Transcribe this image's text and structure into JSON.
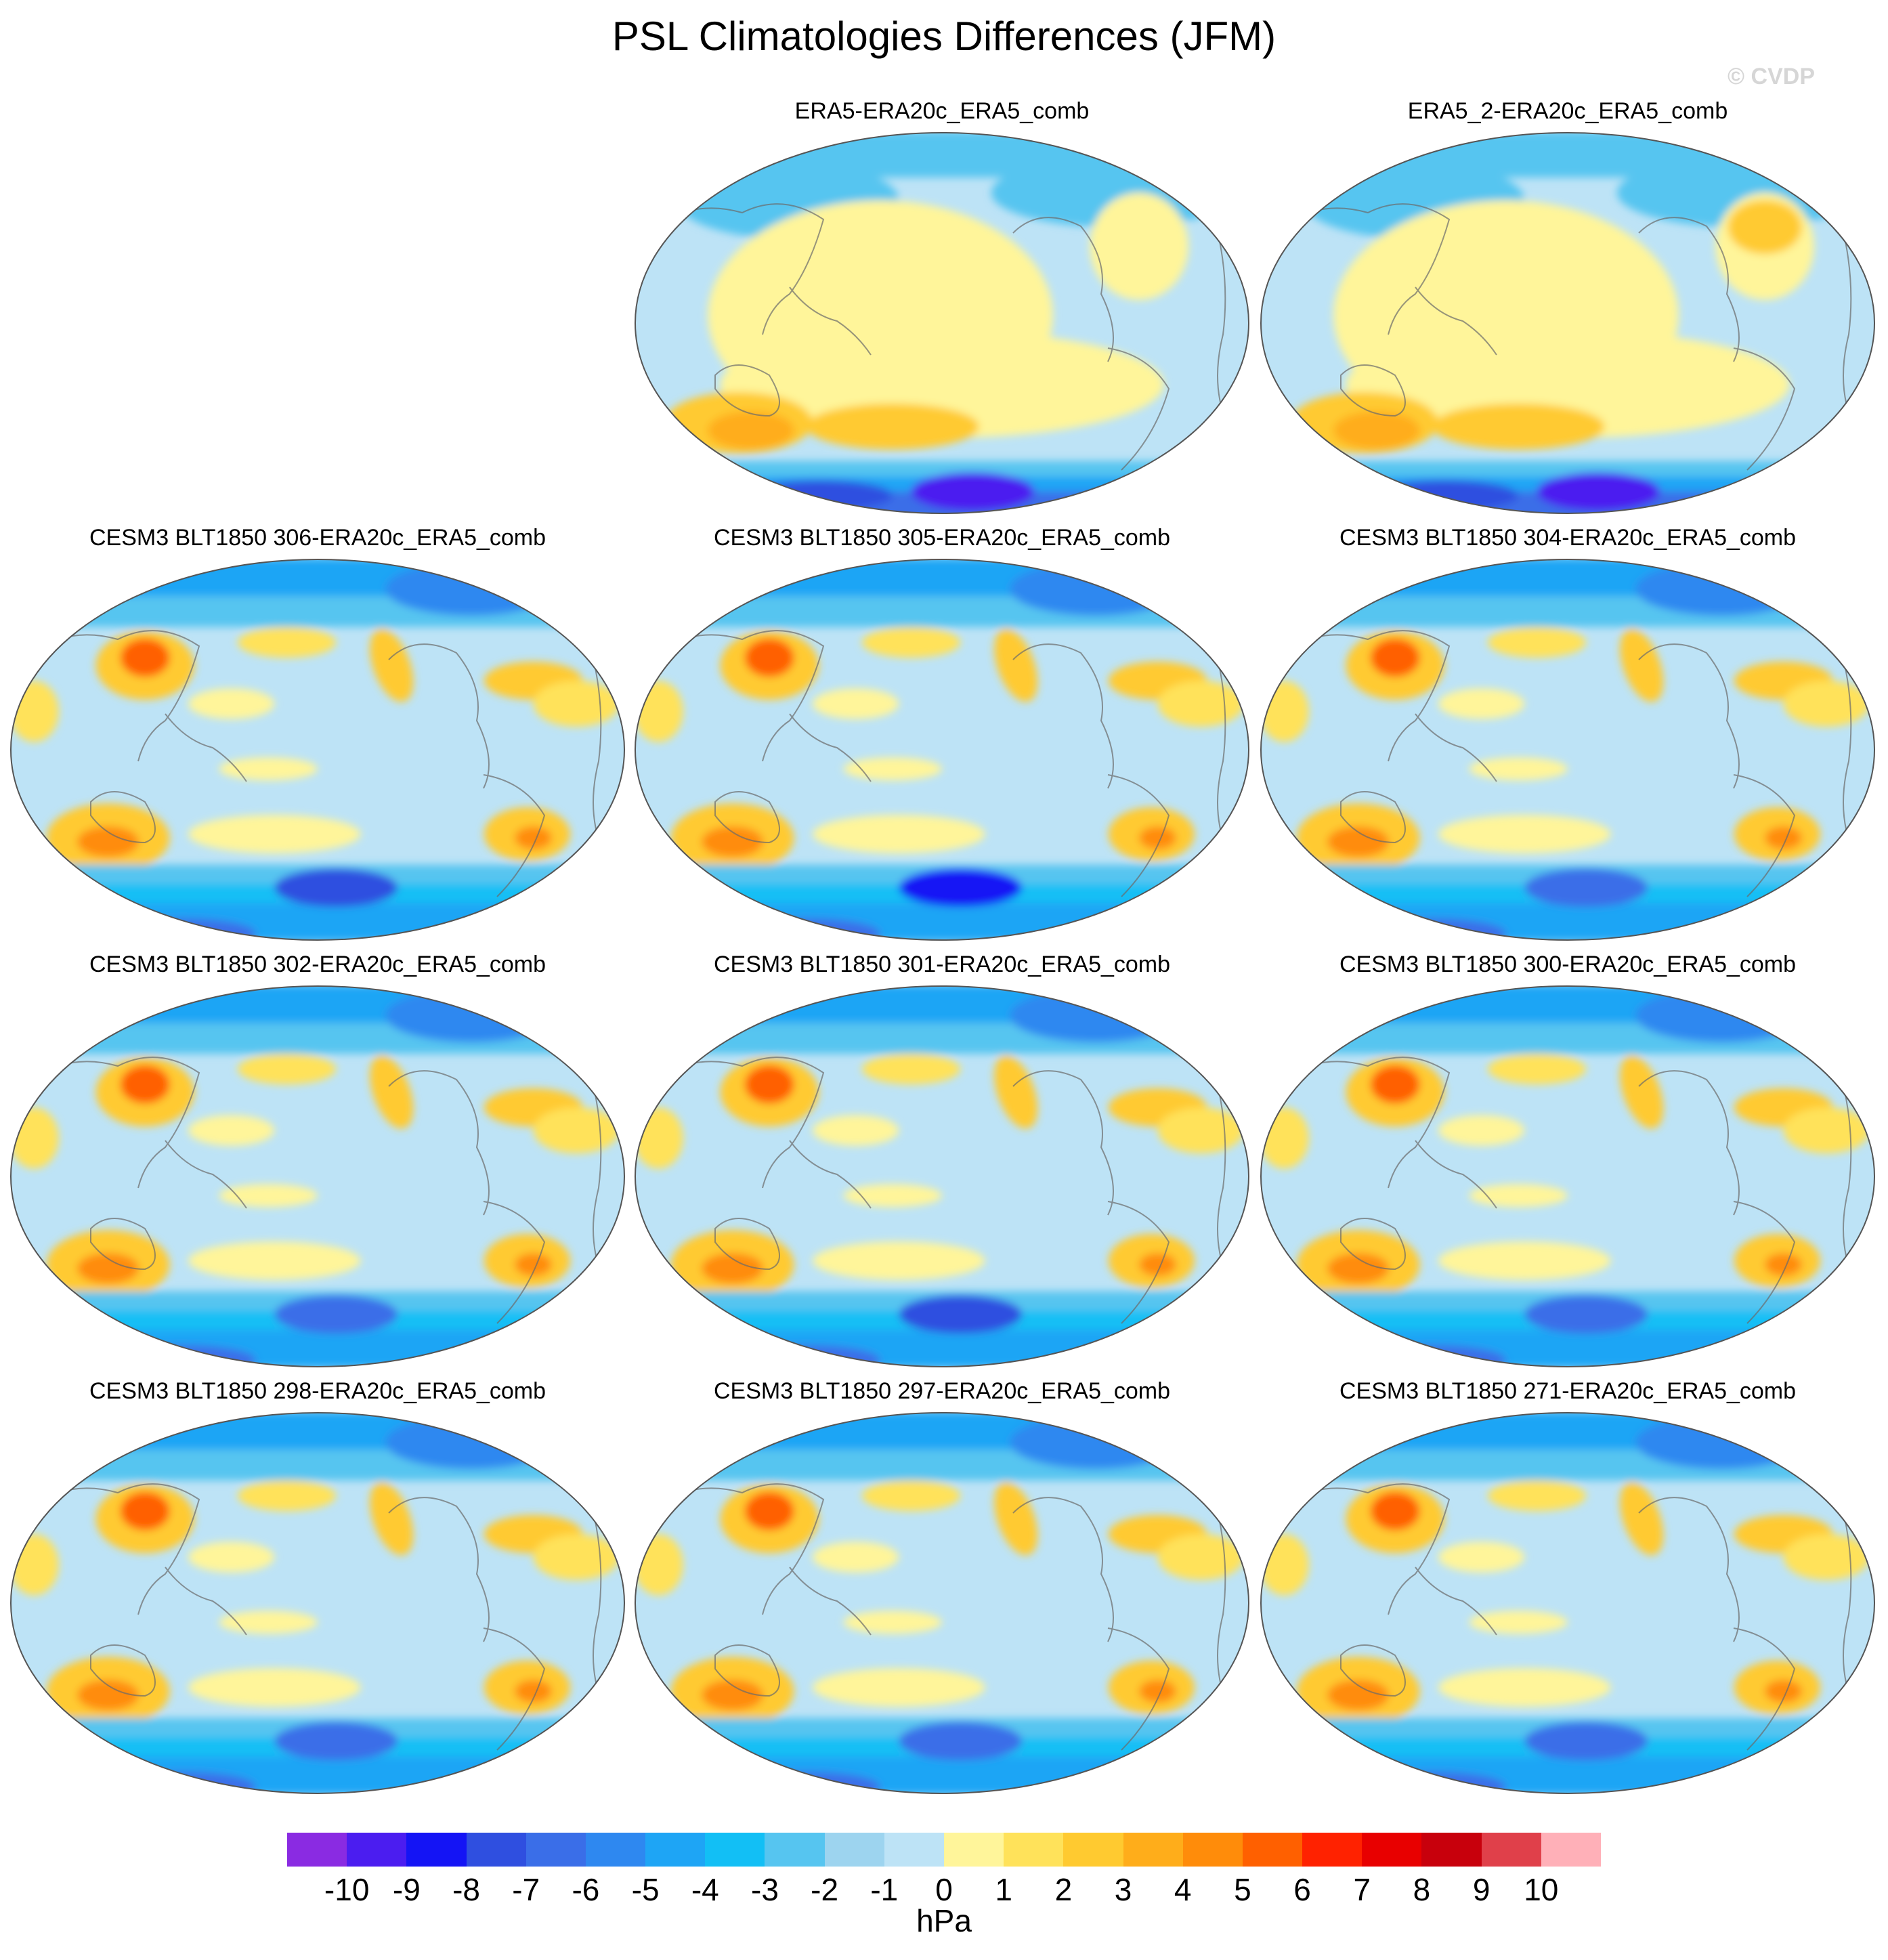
{
  "title": "PSL Climatologies Differences (JFM)",
  "copyright": "© CVDP",
  "panels": [
    {
      "title": "ERA5-ERA20c_ERA5_comb",
      "kind": "obs",
      "south_min": -10
    },
    {
      "title": "ERA5_2-ERA20c_ERA5_comb",
      "kind": "obs",
      "south_min": -10
    },
    {
      "title": "CESM3 BLT1850 306-ERA20c_ERA5_comb",
      "kind": "model",
      "south_min": -8
    },
    {
      "title": "CESM3 BLT1850 305-ERA20c_ERA5_comb",
      "kind": "model",
      "south_min": -9
    },
    {
      "title": "CESM3 BLT1850 304-ERA20c_ERA5_comb",
      "kind": "model",
      "south_min": -7
    },
    {
      "title": "CESM3 BLT1850 302-ERA20c_ERA5_comb",
      "kind": "model",
      "south_min": -7
    },
    {
      "title": "CESM3 BLT1850 301-ERA20c_ERA5_comb",
      "kind": "model",
      "south_min": -8
    },
    {
      "title": "CESM3 BLT1850 300-ERA20c_ERA5_comb",
      "kind": "model",
      "south_min": -7
    },
    {
      "title": "CESM3 BLT1850 298-ERA20c_ERA5_comb",
      "kind": "model",
      "south_min": -7
    },
    {
      "title": "CESM3 BLT1850 297-ERA20c_ERA5_comb",
      "kind": "model",
      "south_min": -7
    },
    {
      "title": "CESM3 BLT1850 271-ERA20c_ERA5_comb",
      "kind": "model",
      "south_min": -7
    }
  ],
  "colorbar": {
    "units": "hPa",
    "labels": [
      "-10",
      "-9",
      "-8",
      "-7",
      "-6",
      "-5",
      "-4",
      "-3",
      "-2",
      "-1",
      "0",
      "1",
      "2",
      "3",
      "4",
      "5",
      "6",
      "7",
      "8",
      "9",
      "10"
    ],
    "colors": [
      "#8a2be2",
      "#4b1df0",
      "#1414f5",
      "#2f4fe0",
      "#3a6ee8",
      "#2e88f0",
      "#1ea5f5",
      "#12bff5",
      "#56c5f0",
      "#9dd4ef",
      "#bde3f6",
      "#fff59a",
      "#ffe25a",
      "#ffca30",
      "#ffad1a",
      "#ff8c0a",
      "#ff6000",
      "#ff2200",
      "#e80000",
      "#c8000c",
      "#e0404a",
      "#ffb0b8"
    ]
  }
}
